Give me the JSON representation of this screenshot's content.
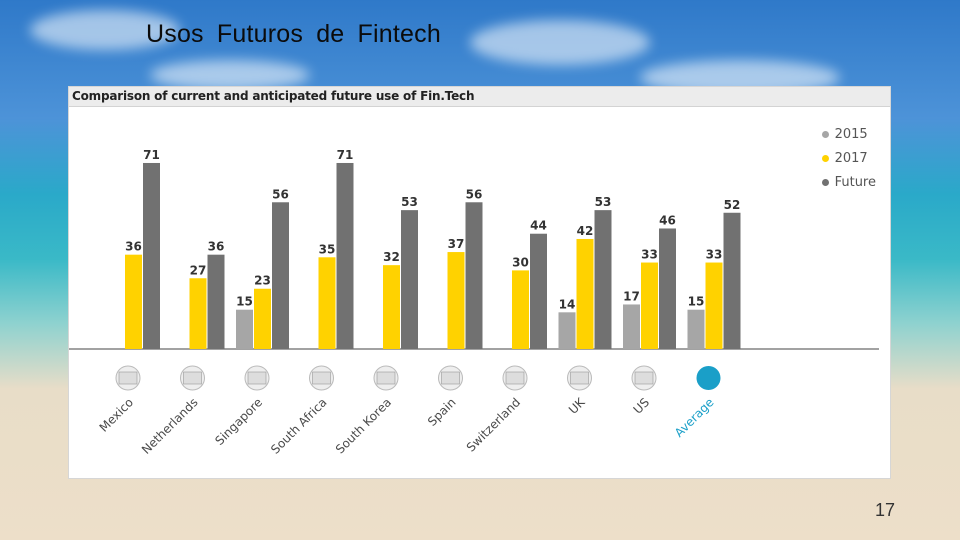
{
  "slide": {
    "title": "Usos  Futuros  de  Fintech",
    "page_number": "17"
  },
  "chart_data": {
    "type": "bar",
    "title": "Comparison of current and anticipated future use of Fin.Tech",
    "categories": [
      "Mexico",
      "Netherlands",
      "Singapore",
      "South Africa",
      "South Korea",
      "Spain",
      "Switzerland",
      "UK",
      "US",
      "Average"
    ],
    "series": [
      {
        "name": "2015",
        "color": "#a6a6a6",
        "values": [
          null,
          null,
          15,
          null,
          null,
          null,
          null,
          14,
          17,
          15
        ]
      },
      {
        "name": "2017",
        "color": "#ffd200",
        "values": [
          36,
          27,
          23,
          35,
          32,
          37,
          30,
          42,
          33,
          33
        ]
      },
      {
        "name": "Future",
        "color": "#717171",
        "values": [
          71,
          36,
          56,
          71,
          53,
          56,
          44,
          53,
          46,
          52
        ]
      }
    ],
    "flag_icons": [
      "mexico-flag-icon",
      "netherlands-flag-icon",
      "singapore-flag-icon",
      "south-africa-flag-icon",
      "south-korea-flag-icon",
      "spain-flag-icon",
      "switzerland-flag-icon",
      "uk-flag-icon",
      "us-flag-icon",
      "average-circle-icon"
    ],
    "highlight_category": "Average",
    "highlight_color": "#1a9fc8",
    "legend_position": "top-right",
    "ylim": [
      0,
      80
    ],
    "grid": false
  }
}
